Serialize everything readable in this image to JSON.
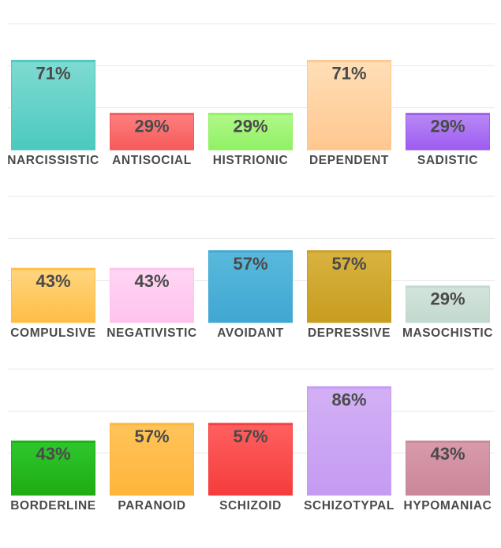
{
  "chart_data": [
    {
      "type": "bar",
      "categories": [
        "NARCISSISTIC",
        "ANTISOCIAL",
        "HISTRIONIC",
        "DEPENDENT",
        "SADISTIC"
      ],
      "values": [
        71,
        29,
        29,
        71,
        29
      ],
      "value_labels": [
        "71%",
        "29%",
        "29%",
        "71%",
        "29%"
      ],
      "colors": [
        [
          "#7fdbd2",
          "#4cc9be"
        ],
        [
          "#ff8080",
          "#f55a5a"
        ],
        [
          "#b2f98a",
          "#90f064"
        ],
        [
          "#ffdfb8",
          "#ffc78f"
        ],
        [
          "#b98af5",
          "#9d5cf0"
        ]
      ],
      "ylim": [
        0,
        100
      ],
      "grid": true,
      "title": "",
      "xlabel": "",
      "ylabel": ""
    },
    {
      "type": "bar",
      "categories": [
        "COMPULSIVE",
        "NEGATIVISTIC",
        "AVOIDANT",
        "DEPRESSIVE",
        "MASOCHISTIC"
      ],
      "values": [
        43,
        43,
        57,
        57,
        29
      ],
      "value_labels": [
        "43%",
        "43%",
        "57%",
        "57%",
        "29%"
      ],
      "colors": [
        [
          "#ffd680",
          "#ffbd45"
        ],
        [
          "#ffd6f4",
          "#ffc2ee"
        ],
        [
          "#5ab9dc",
          "#3fa7d2"
        ],
        [
          "#d9b340",
          "#c79d1f"
        ],
        [
          "#d3e4dc",
          "#c2d9ce"
        ]
      ],
      "ylim": [
        0,
        100
      ],
      "grid": true,
      "title": "",
      "xlabel": "",
      "ylabel": ""
    },
    {
      "type": "bar",
      "categories": [
        "BORDERLINE",
        "PARANOID",
        "SCHIZOID",
        "SCHIZOTYPAL",
        "HYPOMANIAC"
      ],
      "values": [
        43,
        57,
        57,
        86,
        43
      ],
      "value_labels": [
        "43%",
        "57%",
        "57%",
        "86%",
        "43%"
      ],
      "colors": [
        [
          "#2ec72e",
          "#1fad12"
        ],
        [
          "#ffc45a",
          "#ffb53a"
        ],
        [
          "#ff6060",
          "#f53c3c"
        ],
        [
          "#d3b0f5",
          "#c49bf2"
        ],
        [
          "#d99aaa",
          "#c9889a"
        ]
      ],
      "ylim": [
        0,
        100
      ],
      "grid": true,
      "title": "",
      "xlabel": "",
      "ylabel": ""
    }
  ]
}
